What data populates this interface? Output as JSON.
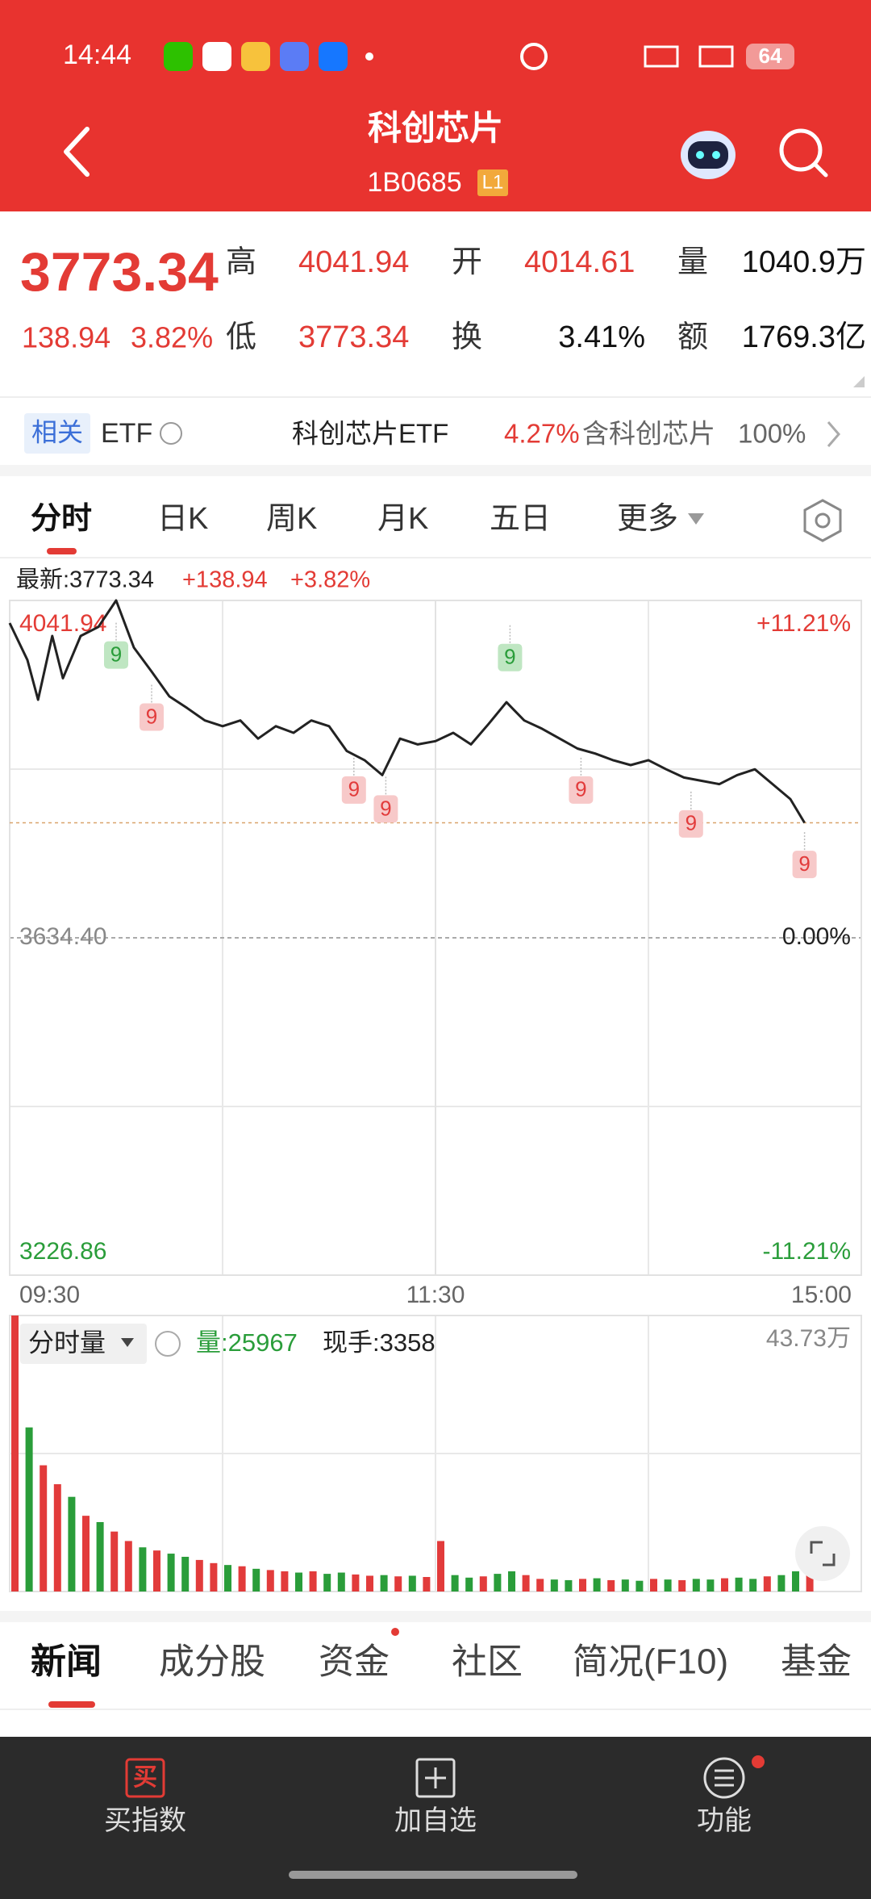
{
  "status_bar": {
    "time": "14:44",
    "battery": "64"
  },
  "header": {
    "title": "科创芯片",
    "code": "1B0685",
    "badge": "L1"
  },
  "quote": {
    "price": "3773.34",
    "change": "138.94",
    "change_pct": "3.82%",
    "fields": [
      {
        "label": "高",
        "value": "4041.94"
      },
      {
        "label": "开",
        "value": "4014.61"
      },
      {
        "label": "量",
        "value": "1040.9万"
      },
      {
        "label": "低",
        "value": "3773.34"
      },
      {
        "label": "换",
        "value": "3.41%"
      },
      {
        "label": "额",
        "value": "1769.3亿"
      }
    ]
  },
  "related": {
    "tag": "相关",
    "etf": "ETF",
    "fund": "科创芯片ETF",
    "fund_pct": "4.27%",
    "holding": "含科创芯片",
    "holding_pct": "100%"
  },
  "chart_tabs": [
    "分时",
    "日K",
    "周K",
    "月K",
    "五日",
    "更多"
  ],
  "latest": {
    "label": "最新:3773.34",
    "change": "+138.94",
    "pct": "+3.82%"
  },
  "chart_data": [
    {
      "type": "line",
      "x": [
        0,
        5,
        8,
        12,
        15,
        20,
        25,
        30,
        35,
        40,
        45,
        50,
        55,
        60,
        65,
        70,
        75,
        80,
        85,
        90,
        95,
        100,
        105,
        110,
        115,
        120,
        125,
        130,
        135,
        140,
        145,
        150,
        155,
        160,
        165,
        170,
        175,
        180,
        185,
        190,
        195,
        200,
        205,
        210,
        215,
        220,
        224
      ],
      "series": [
        {
          "color": "#222222",
          "values": [
            4014.61,
            3970,
            3922,
            3999,
            3948,
            3999,
            4010,
            4041.94,
            3985,
            3956,
            3926,
            3912,
            3897,
            3890,
            3897,
            3875,
            3890,
            3882,
            3897,
            3890,
            3860,
            3849,
            3831,
            3875,
            3868,
            3872,
            3882,
            3868,
            3893,
            3919,
            3897,
            3887,
            3875,
            3863,
            3857,
            3849,
            3843,
            3849,
            3838,
            3828,
            3824,
            3820,
            3831,
            3838,
            3820,
            3802,
            3773.34
          ]
        }
      ],
      "xlim": [
        0,
        240
      ],
      "xticks": [
        {
          "value": 0,
          "label": "09:30"
        },
        {
          "value": 120,
          "label": "11:30"
        },
        {
          "value": 240,
          "label": "15:00"
        }
      ],
      "ylim": [
        3226.86,
        4041.94
      ],
      "yticks": [
        4041.94,
        {
          "value": 3634.4,
          "label": "3634.40"
        },
        3226.86
      ],
      "y2lim": [
        -11.21,
        11.21
      ],
      "y2ticks": [
        {
          "value": 11.21,
          "label": "+11.21%"
        },
        {
          "value": 0,
          "label": "0.00%"
        },
        {
          "value": -11.21,
          "label": "-11.21%"
        }
      ],
      "grid": true,
      "markers": [
        {
          "x": 30,
          "y": 3976,
          "label": "9",
          "color": "#2a9d3a"
        },
        {
          "x": 40,
          "y": 3901,
          "label": "9",
          "color": "#e23b3b"
        },
        {
          "x": 97,
          "y": 3813,
          "label": "9",
          "color": "#e23b3b"
        },
        {
          "x": 106,
          "y": 3790,
          "label": "9",
          "color": "#e23b3b"
        },
        {
          "x": 141,
          "y": 3973,
          "label": "9",
          "color": "#2a9d3a"
        },
        {
          "x": 161,
          "y": 3813,
          "label": "9",
          "color": "#e23b3b"
        },
        {
          "x": 192,
          "y": 3772,
          "label": "9",
          "color": "#e23b3b"
        },
        {
          "x": 224,
          "y": 3723,
          "label": "9",
          "color": "#e23b3b"
        }
      ]
    },
    {
      "type": "bar",
      "x": [
        0,
        4,
        8,
        12,
        16,
        20,
        24,
        28,
        32,
        36,
        40,
        44,
        48,
        52,
        56,
        60,
        64,
        68,
        72,
        76,
        80,
        84,
        88,
        92,
        96,
        100,
        104,
        108,
        112,
        116,
        120,
        124,
        128,
        132,
        136,
        140,
        144,
        148,
        152,
        156,
        160,
        164,
        168,
        172,
        176,
        180,
        184,
        188,
        192,
        196,
        200,
        204,
        208,
        212,
        216,
        220,
        224
      ],
      "values": [
        43.73,
        26,
        20,
        17,
        15,
        12,
        11,
        9.5,
        8,
        7,
        6.5,
        6,
        5.5,
        5,
        4.5,
        4.2,
        4,
        3.6,
        3.4,
        3.2,
        3,
        3.2,
        2.8,
        3,
        2.7,
        2.5,
        2.6,
        2.4,
        2.5,
        2.3,
        8,
        2.6,
        2.2,
        2.4,
        2.8,
        3.2,
        2.6,
        2,
        1.9,
        1.8,
        2,
        2.1,
        1.8,
        1.9,
        1.7,
        2,
        1.9,
        1.8,
        2,
        1.9,
        2.1,
        2.2,
        2,
        2.4,
        2.6,
        3.2,
        3.6
      ],
      "colors": [
        "#e23b3b",
        "#2a9d3a",
        "#e23b3b",
        "#e23b3b",
        "#2a9d3a",
        "#e23b3b",
        "#2a9d3a",
        "#e23b3b",
        "#e23b3b",
        "#2a9d3a",
        "#e23b3b",
        "#2a9d3a",
        "#2a9d3a",
        "#e23b3b",
        "#e23b3b",
        "#2a9d3a",
        "#e23b3b",
        "#2a9d3a",
        "#e23b3b",
        "#e23b3b",
        "#2a9d3a",
        "#e23b3b",
        "#2a9d3a",
        "#2a9d3a",
        "#e23b3b",
        "#e23b3b",
        "#2a9d3a",
        "#e23b3b",
        "#2a9d3a",
        "#e23b3b",
        "#e23b3b",
        "#2a9d3a",
        "#2a9d3a",
        "#e23b3b",
        "#2a9d3a",
        "#2a9d3a",
        "#e23b3b",
        "#e23b3b",
        "#2a9d3a",
        "#2a9d3a",
        "#e23b3b",
        "#2a9d3a",
        "#e23b3b",
        "#2a9d3a",
        "#2a9d3a",
        "#e23b3b",
        "#2a9d3a",
        "#e23b3b",
        "#2a9d3a",
        "#2a9d3a",
        "#e23b3b",
        "#2a9d3a",
        "#2a9d3a",
        "#e23b3b",
        "#2a9d3a",
        "#2a9d3a",
        "#e23b3b"
      ],
      "xlim": [
        0,
        240
      ],
      "ylim": [
        0,
        43.73
      ],
      "yticks": [
        {
          "value": 43.73,
          "label": "43.73万"
        }
      ]
    }
  ],
  "volume_info": {
    "selector": "分时量",
    "volume": "量:25967",
    "hand": "现手:3358"
  },
  "info_tabs": [
    "新闻",
    "成分股",
    "资金",
    "社区",
    "简况(F10)",
    "基金"
  ],
  "bottom_bar": [
    {
      "icon": "买",
      "label": "买指数"
    },
    {
      "label": "加自选"
    },
    {
      "label": "功能"
    }
  ]
}
